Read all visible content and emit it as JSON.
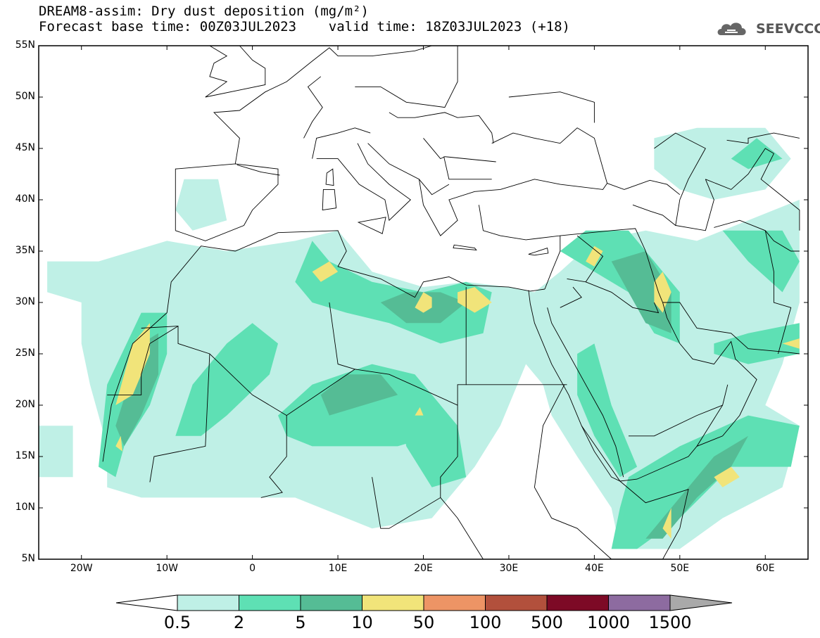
{
  "title": {
    "line1": "DREAM8-assim: Dry dust deposition (mg/m²)",
    "line2": "Forecast base time: 00Z03JUL2023    valid time: 18Z03JUL2023 (+18)"
  },
  "logo": {
    "text": "SEEVCCC",
    "icon": "cloud-icon"
  },
  "map": {
    "lon_range": [
      -25,
      65
    ],
    "lat_range": [
      5,
      55
    ],
    "lat_ticks": [
      "55N",
      "50N",
      "45N",
      "40N",
      "35N",
      "30N",
      "25N",
      "20N",
      "15N",
      "10N",
      "5N"
    ],
    "lon_ticks": [
      "20W",
      "10W",
      "0",
      "10E",
      "20E",
      "30E",
      "40E",
      "50E",
      "60E"
    ]
  },
  "colorbar": {
    "labels": [
      "0.5",
      "2",
      "5",
      "10",
      "50",
      "100",
      "500",
      "1000",
      "1500"
    ],
    "colors": [
      "#bff0e6",
      "#5ee0b4",
      "#55bc95",
      "#f1e47a",
      "#ed9465",
      "#b2503c",
      "#7d0a26",
      "#8d6ba0"
    ],
    "under_color": "#ffffff",
    "over_color": "#a9a9a9"
  }
}
